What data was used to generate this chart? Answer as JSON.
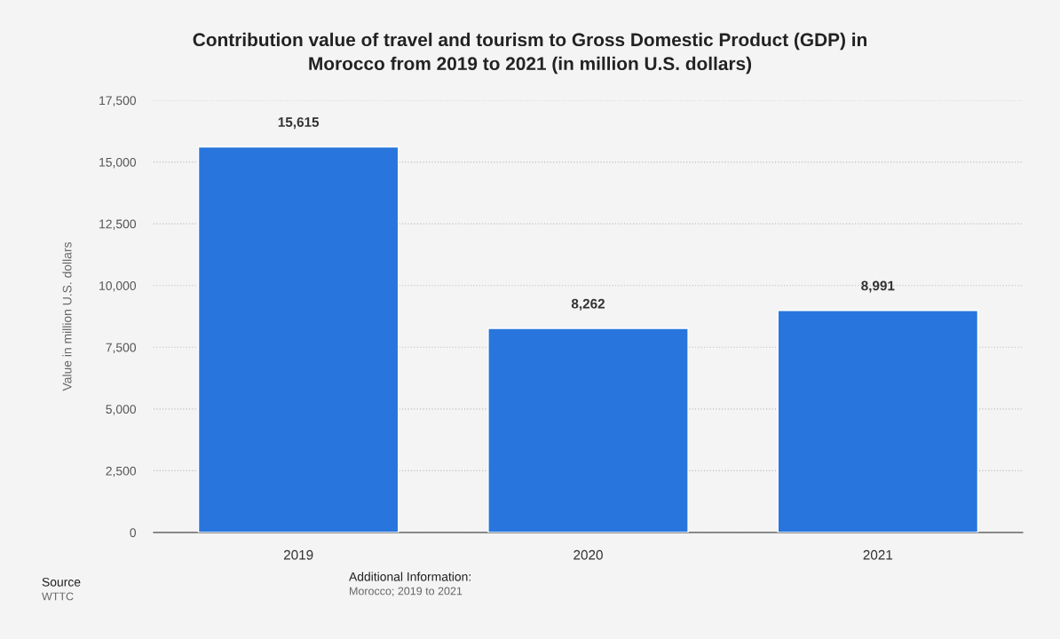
{
  "chart_data": {
    "type": "bar",
    "title": "Contribution value of travel and tourism to Gross Domestic Product (GDP) in\nMorocco from 2019 to 2021 (in million U.S. dollars)",
    "ylabel": "Value in million U.S. dollars",
    "categories": [
      "2019",
      "2020",
      "2021"
    ],
    "values": [
      15615,
      8262,
      8991
    ],
    "color": "#2876dd",
    "value_labels": [
      "15,615",
      "8,262",
      "8,991"
    ],
    "ylim": [
      0,
      17500
    ],
    "yticks": [
      {
        "value": 0,
        "label": "0"
      },
      {
        "value": 2500,
        "label": "2,500"
      },
      {
        "value": 5000,
        "label": "5,000"
      },
      {
        "value": 7500,
        "label": "7,500"
      },
      {
        "value": 10000,
        "label": "10,000"
      },
      {
        "value": 12500,
        "label": "12,500"
      },
      {
        "value": 15000,
        "label": "15,000"
      },
      {
        "value": 17500,
        "label": "17,500"
      }
    ],
    "grid": "y",
    "annotations": [
      "Source",
      "WTTC",
      "Additional Information:",
      "Morocco; 2019 to 2021"
    ]
  }
}
